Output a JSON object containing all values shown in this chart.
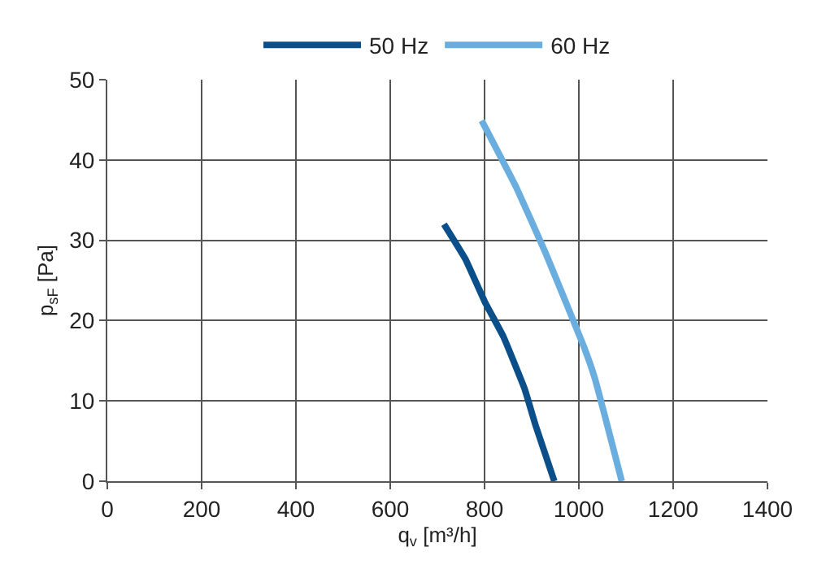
{
  "chart_data": {
    "type": "line",
    "xlabel": "q$_{v}$ [m³/h]",
    "ylabel": "p$_{sF}$ [Pa]",
    "xlim": [
      0,
      1400
    ],
    "xticks": [
      0,
      200,
      400,
      600,
      800,
      1000,
      1200,
      1400
    ],
    "ylim": [
      0,
      50
    ],
    "yticks": [
      0,
      10,
      20,
      30,
      40,
      50
    ],
    "grid": true,
    "legend": "top",
    "marker": "none",
    "line_style": "solid",
    "series": [
      {
        "name": "50 Hz",
        "color": "#0b4f8a",
        "x": [
          714,
          760,
          800,
          840,
          885,
          908,
          948
        ],
        "values": [
          32,
          27.6,
          22.4,
          18,
          11.5,
          7,
          0
        ]
      },
      {
        "name": "60 Hz",
        "color": "#6aaee0",
        "x": [
          794,
          868,
          931,
          1011,
          1034,
          1091
        ],
        "values": [
          44.9,
          36.5,
          28.2,
          16.7,
          12.8,
          0
        ]
      }
    ]
  }
}
